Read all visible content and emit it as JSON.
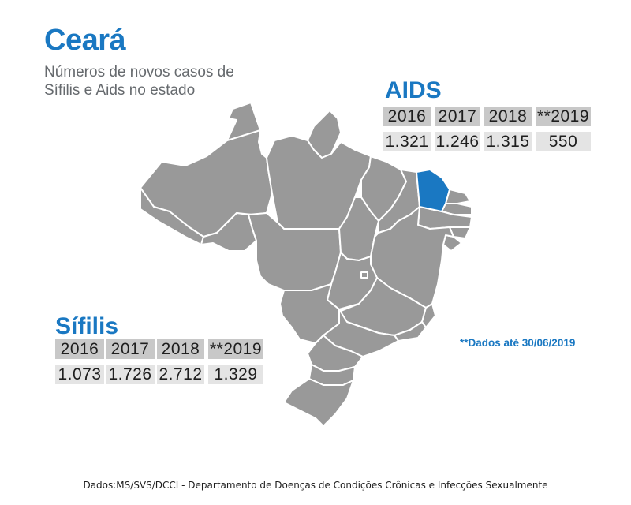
{
  "header": {
    "title": "Ceará",
    "subtitle_line1": "Números de novos casos de",
    "subtitle_line2": "Sífilis e Aids no estado"
  },
  "map": {
    "country": "Brasil",
    "highlighted_state": "Ceará",
    "highlight_color": "#1a78c2",
    "state_color": "#999999",
    "border_color": "#ffffff"
  },
  "aids": {
    "title": "AIDS",
    "years": [
      "2016",
      "2017",
      "2018",
      "**2019"
    ],
    "values": [
      "1.321",
      "1.246",
      "1.315",
      "550"
    ]
  },
  "sifilis": {
    "title": "Sífilis",
    "years": [
      "2016",
      "2017",
      "2018",
      "**2019"
    ],
    "values": [
      "1.073",
      "1.726",
      "2.712",
      "1.329"
    ]
  },
  "footnote": "**Dados até 30/06/2019",
  "source": "Dados:MS/SVS/DCCI - Departamento de Doenças de Condições Crônicas e Infecções Sexualmente"
}
